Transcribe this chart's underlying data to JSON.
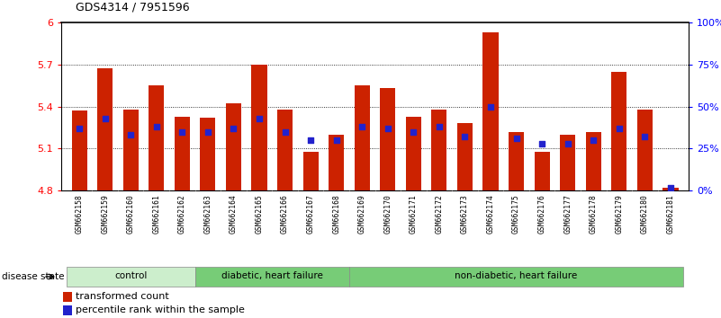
{
  "title": "GDS4314 / 7951596",
  "samples": [
    "GSM662158",
    "GSM662159",
    "GSM662160",
    "GSM662161",
    "GSM662162",
    "GSM662163",
    "GSM662164",
    "GSM662165",
    "GSM662166",
    "GSM662167",
    "GSM662168",
    "GSM662169",
    "GSM662170",
    "GSM662171",
    "GSM662172",
    "GSM662173",
    "GSM662174",
    "GSM662175",
    "GSM662176",
    "GSM662177",
    "GSM662178",
    "GSM662179",
    "GSM662180",
    "GSM662181"
  ],
  "bar_values": [
    5.37,
    5.67,
    5.38,
    5.55,
    5.33,
    5.32,
    5.42,
    5.7,
    5.38,
    5.08,
    5.2,
    5.55,
    5.53,
    5.33,
    5.38,
    5.28,
    5.93,
    5.22,
    5.08,
    5.2,
    5.22,
    5.65,
    5.38,
    4.82
  ],
  "percentile_values": [
    37,
    43,
    33,
    38,
    35,
    35,
    37,
    43,
    35,
    30,
    30,
    38,
    37,
    35,
    38,
    32,
    50,
    31,
    28,
    28,
    30,
    37,
    32,
    2
  ],
  "ylim_left": [
    4.8,
    6.0
  ],
  "ylim_right": [
    0,
    100
  ],
  "yticks_left": [
    4.8,
    5.1,
    5.4,
    5.7,
    6.0
  ],
  "ytick_labels_left": [
    "4.8",
    "5.1",
    "5.4",
    "5.7",
    "6"
  ],
  "yticks_right": [
    0,
    25,
    50,
    75,
    100
  ],
  "ytick_labels_right": [
    "0%",
    "25%",
    "50%",
    "75%",
    "100%"
  ],
  "bar_color": "#cc2200",
  "dot_color": "#2222cc",
  "bar_bottom": 4.8,
  "disease_state_label": "disease state",
  "legend_bar_label": "transformed count",
  "legend_dot_label": "percentile rank within the sample",
  "group_starts": [
    0,
    5,
    11
  ],
  "group_ends": [
    5,
    11,
    24
  ],
  "group_labels": [
    "control",
    "diabetic, heart failure",
    "non-diabetic, heart failure"
  ],
  "group_colors": [
    "#cceecc",
    "#77cc77",
    "#77cc77"
  ]
}
